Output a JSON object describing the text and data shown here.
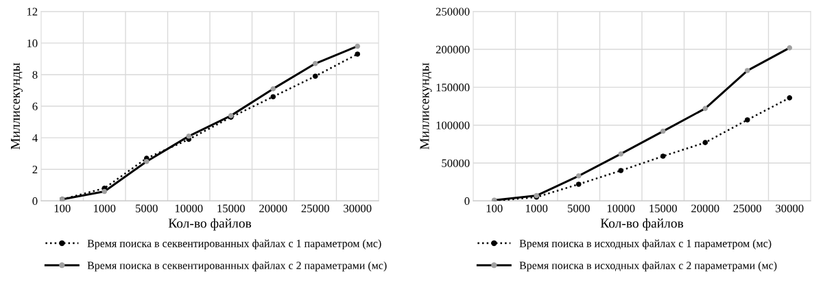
{
  "chart_data": [
    {
      "type": "line",
      "xlabel": "Кол-во файлов",
      "ylabel": "Миллисекунды",
      "categories": [
        "100",
        "1000",
        "5000",
        "10000",
        "15000",
        "20000",
        "25000",
        "30000"
      ],
      "ylim": [
        0,
        12
      ],
      "yticks": [
        0,
        2,
        4,
        6,
        8,
        10,
        12
      ],
      "grid": true,
      "legend": "bottom",
      "marker": "circle",
      "series": [
        {
          "name": "Время поиска в секвентированных файлах с 1 параметром (мс)",
          "color": "#000000",
          "colors": [
            "#000000",
            "#000000",
            "#000000",
            "#000000",
            "#000000",
            "#000000",
            "#000000",
            "#000000"
          ],
          "line_style": "dotted",
          "values": [
            0.1,
            0.8,
            2.7,
            3.9,
            5.3,
            6.6,
            7.9,
            9.3
          ]
        },
        {
          "name": "Время поиска в секвентированных файлах с 2 параметрами (мс)",
          "color": "#000000",
          "colors": [
            "#a0a0a0",
            "#a0a0a0",
            "#a0a0a0",
            "#a0a0a0",
            "#a0a0a0",
            "#a0a0a0",
            "#a0a0a0",
            "#a0a0a0"
          ],
          "line_style": "solid",
          "values": [
            0.1,
            0.6,
            2.5,
            4.1,
            5.4,
            7.1,
            8.7,
            9.8
          ]
        }
      ]
    },
    {
      "type": "line",
      "xlabel": "Кол-во файлов",
      "ylabel": "Миллисекунды",
      "categories": [
        "100",
        "1000",
        "5000",
        "10000",
        "15000",
        "20000",
        "25000",
        "30000"
      ],
      "ylim": [
        0,
        250000
      ],
      "yticks": [
        0,
        50000,
        100000,
        150000,
        200000,
        250000
      ],
      "grid": true,
      "legend": "bottom",
      "marker": "circle",
      "series": [
        {
          "name": "Время поиска в исходных файлах с 1 параметром (мс)",
          "color": "#000000",
          "colors": [
            "#000000",
            "#000000",
            "#000000",
            "#000000",
            "#000000",
            "#000000",
            "#000000",
            "#000000"
          ],
          "line_style": "dotted",
          "values": [
            0,
            5000,
            22000,
            40000,
            59000,
            77000,
            107000,
            136000
          ]
        },
        {
          "name": "Время поиска в исходных файлах с 2 параметрами (мс)",
          "color": "#000000",
          "colors": [
            "#a0a0a0",
            "#a0a0a0",
            "#a0a0a0",
            "#a0a0a0",
            "#a0a0a0",
            "#a0a0a0",
            "#a0a0a0",
            "#a0a0a0"
          ],
          "line_style": "solid",
          "values": [
            1000,
            7000,
            33000,
            62000,
            92000,
            122000,
            172000,
            202000
          ]
        }
      ]
    }
  ]
}
